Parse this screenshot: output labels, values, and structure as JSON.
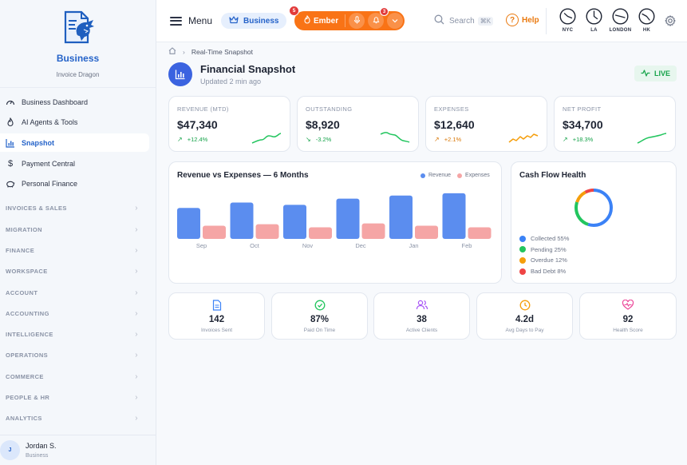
{
  "sidebar": {
    "brand_title": "Business",
    "brand_subtitle": "Invoice Dragon",
    "items": [
      {
        "label": "Business Dashboard",
        "icon": "gauge-icon"
      },
      {
        "label": "AI Agents & Tools",
        "icon": "flame-icon"
      },
      {
        "label": "Snapshot",
        "icon": "bar-chart-icon",
        "active": true
      },
      {
        "label": "Payment Central",
        "icon": "dollar-icon"
      },
      {
        "label": "Personal Finance",
        "icon": "piggy-bank-icon"
      }
    ],
    "groups": [
      "INVOICES & SALES",
      "MIGRATION",
      "FINANCE",
      "WORKSPACE",
      "ACCOUNT",
      "ACCOUNTING",
      "INTELLIGENCE",
      "OPERATIONS",
      "COMMERCE",
      "PEOPLE & HR",
      "ANALYTICS"
    ],
    "user": {
      "initial": "J",
      "name": "Jordan S.",
      "role": "Business"
    }
  },
  "topbar": {
    "menu_label": "Menu",
    "plan_label": "Business",
    "ember_label": "Ember",
    "ember_badge": "5",
    "notif_badge": "3",
    "search_placeholder": "Search",
    "search_shortcut": "⌘K",
    "help_label": "Help",
    "clocks": [
      {
        "label": "NYC"
      },
      {
        "label": "LA"
      },
      {
        "label": "LONDON"
      },
      {
        "label": "HK"
      }
    ]
  },
  "page": {
    "breadcrumb_current": "Real-Time Snapshot",
    "title": "Financial Snapshot",
    "subtitle": "Updated 2 min ago",
    "live_label": "LIVE"
  },
  "kpis": [
    {
      "label": "REVENUE (MTD)",
      "value": "$47,340",
      "delta": "+12.4%",
      "trend": "up",
      "color": "#22c55e"
    },
    {
      "label": "OUTSTANDING",
      "value": "$8,920",
      "delta": "-3.2%",
      "trend": "down",
      "color": "#22c55e"
    },
    {
      "label": "EXPENSES",
      "value": "$12,640",
      "delta": "+2.1%",
      "trend": "up",
      "color": "#f59e0b"
    },
    {
      "label": "NET PROFIT",
      "value": "$34,700",
      "delta": "+18.3%",
      "trend": "up",
      "color": "#22c55e"
    }
  ],
  "revenue_chart": {
    "title": "Revenue vs Expenses — 6 Months",
    "legend_revenue": "Revenue",
    "legend_expenses": "Expenses",
    "colors": {
      "revenue": "#5b8def",
      "expenses": "#f5a5a5"
    }
  },
  "chart_data": {
    "type": "bar",
    "categories": [
      "Sep",
      "Oct",
      "Nov",
      "Dec",
      "Jan",
      "Feb"
    ],
    "series": [
      {
        "name": "Revenue",
        "values": [
          40,
          47,
          44,
          52,
          56,
          59
        ]
      },
      {
        "name": "Expenses",
        "values": [
          17,
          19,
          15,
          20,
          17,
          15
        ]
      }
    ],
    "ylim": [
      0,
      62
    ],
    "grid": false
  },
  "cash_flow": {
    "title": "Cash Flow Health",
    "items": [
      {
        "label": "Collected 55%",
        "value": 55,
        "color": "#3b82f6"
      },
      {
        "label": "Pending 25%",
        "value": 25,
        "color": "#22c55e"
      },
      {
        "label": "Overdue 12%",
        "value": 12,
        "color": "#f59e0b"
      },
      {
        "label": "Bad Debt 8%",
        "value": 8,
        "color": "#ef4444"
      }
    ]
  },
  "stats": [
    {
      "value": "142",
      "label": "Invoices Sent",
      "icon": "document-icon",
      "color": "#3b82f6"
    },
    {
      "value": "87%",
      "label": "Paid On Time",
      "icon": "check-circle-icon",
      "color": "#22c55e"
    },
    {
      "value": "38",
      "label": "Active Clients",
      "icon": "users-icon",
      "color": "#a855f7"
    },
    {
      "value": "4.2d",
      "label": "Avg Days to Pay",
      "icon": "clock-icon",
      "color": "#f59e0b"
    },
    {
      "value": "92",
      "label": "Health Score",
      "icon": "heart-pulse-icon",
      "color": "#ec4899"
    }
  ]
}
